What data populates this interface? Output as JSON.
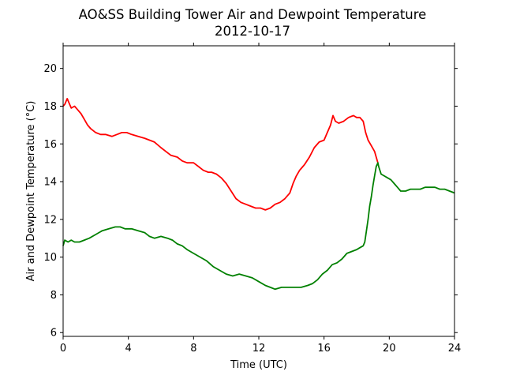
{
  "chart_data": {
    "type": "line",
    "title": "AO&SS Building Tower Air and Dewpoint Temperature",
    "subtitle": "2012-10-17",
    "xlabel": "Time (UTC)",
    "ylabel": "Air and Dewpoint Temperature (°C)",
    "xlim": [
      0,
      24
    ],
    "ylim": [
      5.8,
      21.2
    ],
    "xticks": [
      0,
      4,
      8,
      12,
      16,
      20,
      24
    ],
    "yticks": [
      6,
      8,
      10,
      12,
      14,
      16,
      18,
      20
    ],
    "grid": false,
    "legend": "none",
    "series": [
      {
        "color": "#ff0000",
        "x": [
          0,
          0.1,
          0.25,
          0.35,
          0.5,
          0.7,
          0.9,
          1.1,
          1.3,
          1.5,
          1.7,
          2.0,
          2.3,
          2.6,
          3.0,
          3.3,
          3.6,
          3.9,
          4.2,
          4.6,
          5.0,
          5.3,
          5.6,
          6.0,
          6.3,
          6.6,
          7.0,
          7.3,
          7.6,
          8.0,
          8.3,
          8.6,
          8.9,
          9.1,
          9.4,
          9.7,
          10.0,
          10.3,
          10.6,
          10.9,
          11.2,
          11.5,
          11.8,
          12.1,
          12.4,
          12.7,
          13.0,
          13.3,
          13.6,
          13.9,
          14.1,
          14.3,
          14.5,
          14.8,
          15.1,
          15.4,
          15.7,
          16.0,
          16.2,
          16.4,
          16.55,
          16.7,
          16.9,
          17.2,
          17.5,
          17.8,
          18.0,
          18.2,
          18.4,
          18.55,
          18.7,
          18.9,
          19.1,
          19.3
        ],
        "values": [
          18.0,
          18.1,
          18.4,
          18.2,
          17.9,
          18.0,
          17.8,
          17.6,
          17.3,
          17.0,
          16.8,
          16.6,
          16.5,
          16.5,
          16.4,
          16.5,
          16.6,
          16.6,
          16.5,
          16.4,
          16.3,
          16.2,
          16.1,
          15.8,
          15.6,
          15.4,
          15.3,
          15.1,
          15.0,
          15.0,
          14.8,
          14.6,
          14.5,
          14.5,
          14.4,
          14.2,
          13.9,
          13.5,
          13.1,
          12.9,
          12.8,
          12.7,
          12.6,
          12.6,
          12.5,
          12.6,
          12.8,
          12.9,
          13.1,
          13.4,
          13.9,
          14.3,
          14.6,
          14.9,
          15.3,
          15.8,
          16.1,
          16.2,
          16.6,
          17.0,
          17.5,
          17.2,
          17.1,
          17.2,
          17.4,
          17.5,
          17.4,
          17.4,
          17.2,
          16.6,
          16.2,
          15.9,
          15.6,
          15.0
        ]
      },
      {
        "color": "#008000",
        "x": [
          0,
          0.1,
          0.3,
          0.5,
          0.7,
          1.0,
          1.3,
          1.6,
          2.0,
          2.4,
          2.8,
          3.2,
          3.5,
          3.8,
          4.2,
          4.6,
          5.0,
          5.3,
          5.6,
          6.0,
          6.4,
          6.7,
          7.0,
          7.3,
          7.6,
          8.0,
          8.4,
          8.8,
          9.2,
          9.6,
          10.0,
          10.4,
          10.8,
          11.2,
          11.6,
          12.0,
          12.4,
          12.7,
          13.0,
          13.4,
          13.8,
          14.2,
          14.6,
          15.0,
          15.3,
          15.6,
          15.9,
          16.2,
          16.5,
          16.8,
          17.1,
          17.4,
          17.7,
          18.0,
          18.2,
          18.4,
          18.5,
          18.6,
          18.7,
          18.8,
          18.9,
          19.0,
          19.1,
          19.2,
          19.3,
          19.35,
          19.5,
          19.7,
          19.9,
          20.1,
          20.3,
          20.5,
          20.7,
          21.0,
          21.3,
          21.6,
          21.9,
          22.2,
          22.5,
          22.8,
          23.1,
          23.4,
          23.7,
          24.0
        ],
        "values": [
          10.6,
          10.9,
          10.8,
          10.9,
          10.8,
          10.8,
          10.9,
          11.0,
          11.2,
          11.4,
          11.5,
          11.6,
          11.6,
          11.5,
          11.5,
          11.4,
          11.3,
          11.1,
          11.0,
          11.1,
          11.0,
          10.9,
          10.7,
          10.6,
          10.4,
          10.2,
          10.0,
          9.8,
          9.5,
          9.3,
          9.1,
          9.0,
          9.1,
          9.0,
          8.9,
          8.7,
          8.5,
          8.4,
          8.3,
          8.4,
          8.4,
          8.4,
          8.4,
          8.5,
          8.6,
          8.8,
          9.1,
          9.3,
          9.6,
          9.7,
          9.9,
          10.2,
          10.3,
          10.4,
          10.5,
          10.6,
          10.8,
          11.4,
          12.0,
          12.7,
          13.2,
          13.8,
          14.3,
          14.8,
          15.0,
          14.8,
          14.4,
          14.3,
          14.2,
          14.1,
          13.9,
          13.7,
          13.5,
          13.5,
          13.6,
          13.6,
          13.6,
          13.7,
          13.7,
          13.7,
          13.6,
          13.6,
          13.5,
          13.4
        ]
      }
    ]
  }
}
